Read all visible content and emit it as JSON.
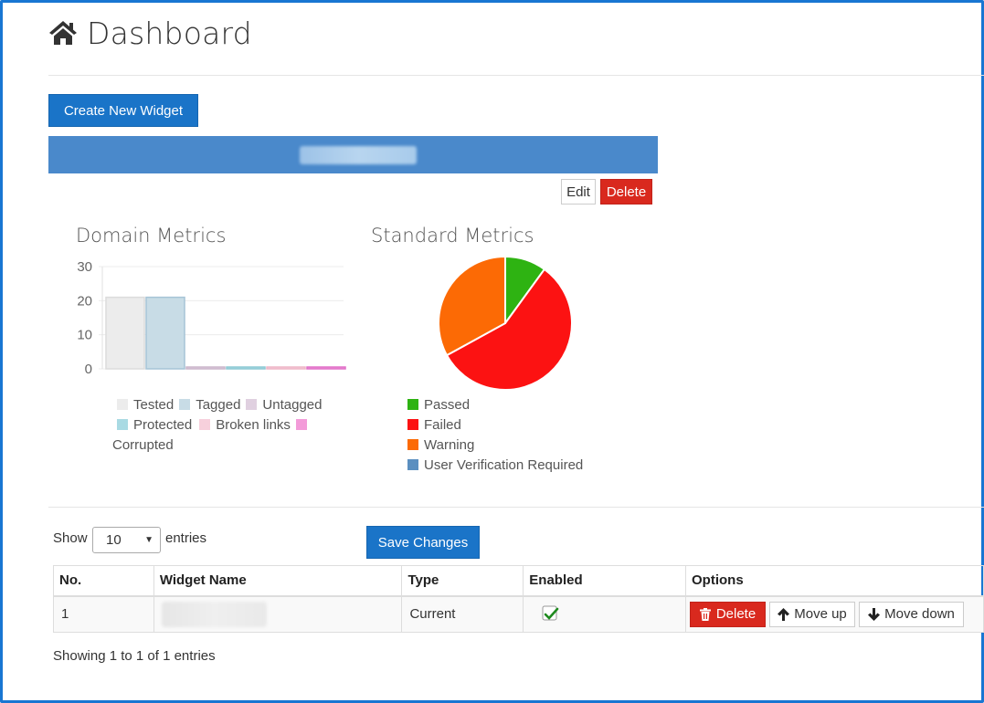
{
  "header": {
    "title": "Dashboard"
  },
  "toolbar": {
    "create_label": "Create New Widget"
  },
  "widget": {
    "edit_label": "Edit",
    "delete_label": "Delete"
  },
  "domain_metrics": {
    "title": "Domain Metrics",
    "chart_data": {
      "type": "bar",
      "categories": [
        "Tested",
        "Tagged",
        "Untagged",
        "Protected",
        "Broken links",
        "Corrupted"
      ],
      "values": [
        21,
        21,
        0,
        0,
        0,
        0
      ],
      "ylim": [
        0,
        30
      ],
      "yticks": [
        "0",
        "10",
        "20",
        "30"
      ],
      "colors": [
        "#ececec",
        "#c8dce6",
        "#e0d0e0",
        "#a9dae3",
        "#f7d0dc",
        "#f39bd9"
      ],
      "borders": [
        "#dcdcdc",
        "#a6c4d6",
        "#cbb6cb",
        "#8ec9d4",
        "#eeb6c6",
        "#e070c8"
      ],
      "grid": true
    }
  },
  "standard_metrics": {
    "title": "Standard Metrics",
    "chart_data": {
      "type": "pie",
      "labels": [
        "Passed",
        "Failed",
        "Warning",
        "User Verification Required"
      ],
      "values": [
        10,
        57,
        33,
        0
      ],
      "colors": [
        "#2eb312",
        "#fc1212",
        "#fc6a05",
        "#5b8fc0"
      ]
    }
  },
  "table_controls": {
    "show_label": "Show",
    "entries_value": "10",
    "entries_label": "entries",
    "save_label": "Save Changes"
  },
  "table": {
    "columns": [
      "No.",
      "Widget Name",
      "Type",
      "Enabled",
      "Options"
    ],
    "rows": [
      {
        "no": "1",
        "name": "",
        "type": "Current",
        "enabled": true
      }
    ],
    "actions": {
      "delete": "Delete",
      "move_up": "Move up",
      "move_down": "Move down"
    }
  },
  "footer": {
    "info": "Showing 1 to 1 of 1 entries"
  }
}
